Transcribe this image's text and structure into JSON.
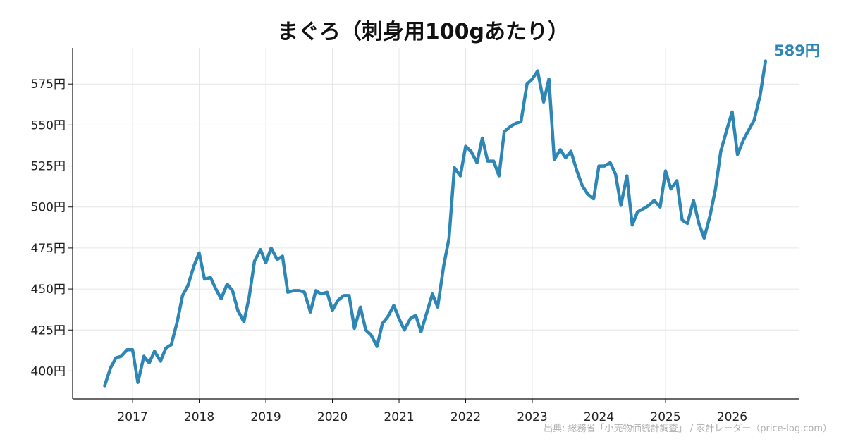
{
  "chart_data": {
    "type": "line",
    "title": "まぐろ（刺身用100gあたり）",
    "xlabel": "",
    "ylabel": "",
    "x_ticks": [
      "2017",
      "2018",
      "2019",
      "2020",
      "2021",
      "2022",
      "2023",
      "2024",
      "2025",
      "2026"
    ],
    "y_ticks": [
      "400円",
      "425円",
      "450円",
      "475円",
      "500円",
      "525円",
      "550円",
      "575円"
    ],
    "ylim": [
      383,
      597
    ],
    "xlim": [
      2016.1,
      2027.0
    ],
    "grid": true,
    "line_color": "#2e86b5",
    "end_label": "589円",
    "source": "出典: 総務省「小売物価統計調査」 / 家計レーダー（price-log.com）",
    "series": [
      {
        "x": [
          2016.58,
          2016.67,
          2016.75,
          2016.83,
          2016.92,
          2017.0,
          2017.08,
          2017.17,
          2017.25,
          2017.33,
          2017.42,
          2017.5,
          2017.58,
          2017.67,
          2017.75,
          2017.83,
          2017.92,
          2018.0,
          2018.08,
          2018.17,
          2018.25,
          2018.33,
          2018.42,
          2018.5,
          2018.58,
          2018.67,
          2018.75,
          2018.83,
          2018.92,
          2019.0,
          2019.08,
          2019.17,
          2019.25,
          2019.33,
          2019.42,
          2019.5,
          2019.58,
          2019.67,
          2019.75,
          2019.83,
          2019.92,
          2020.0,
          2020.08,
          2020.17,
          2020.25,
          2020.33,
          2020.42,
          2020.5,
          2020.58,
          2020.67,
          2020.75,
          2020.83,
          2020.92,
          2021.0,
          2021.08,
          2021.17,
          2021.25,
          2021.33,
          2021.42,
          2021.5,
          2021.58,
          2021.67,
          2021.75,
          2021.83,
          2021.92,
          2022.0,
          2022.08,
          2022.17,
          2022.25,
          2022.33,
          2022.42,
          2022.5,
          2022.58,
          2022.67,
          2022.75,
          2022.83,
          2022.92,
          2023.0,
          2023.08,
          2023.17,
          2023.25,
          2023.33,
          2023.42,
          2023.5,
          2023.58,
          2023.67,
          2023.75,
          2023.83,
          2023.92,
          2024.0,
          2024.08,
          2024.17,
          2024.25,
          2024.33,
          2024.42,
          2024.5,
          2024.58,
          2024.67,
          2024.75,
          2024.83,
          2024.92,
          2025.0,
          2025.08,
          2025.17,
          2025.25,
          2025.33,
          2025.42,
          2025.5,
          2025.58,
          2025.67,
          2025.75,
          2025.83,
          2025.92,
          2026.0,
          2026.08,
          2026.17,
          2026.25,
          2026.33,
          2026.42,
          2026.5
        ],
        "values": [
          391,
          402,
          408,
          409,
          413,
          413,
          393,
          409,
          405,
          412,
          406,
          414,
          416,
          430,
          446,
          452,
          464,
          472,
          456,
          457,
          450,
          444,
          453,
          449,
          437,
          430,
          445,
          467,
          474,
          466,
          475,
          468,
          470,
          448,
          449,
          449,
          448,
          436,
          449,
          447,
          448,
          437,
          443,
          446,
          446,
          426,
          439,
          425,
          422,
          415,
          429,
          433,
          440,
          432,
          425,
          432,
          434,
          424,
          436,
          447,
          439,
          464,
          481,
          524,
          519,
          537,
          534,
          527,
          542,
          528,
          528,
          519,
          546,
          549,
          551,
          552,
          575,
          578,
          583,
          564,
          578,
          529,
          535,
          530,
          534,
          522,
          513,
          508,
          505,
          525,
          525,
          527,
          520,
          501,
          519,
          489,
          497,
          499,
          501,
          504,
          500,
          522,
          511,
          516,
          492,
          490,
          504,
          490,
          481,
          495,
          511,
          534,
          547,
          558,
          532,
          541,
          547,
          553,
          568,
          589
        ]
      }
    ]
  }
}
